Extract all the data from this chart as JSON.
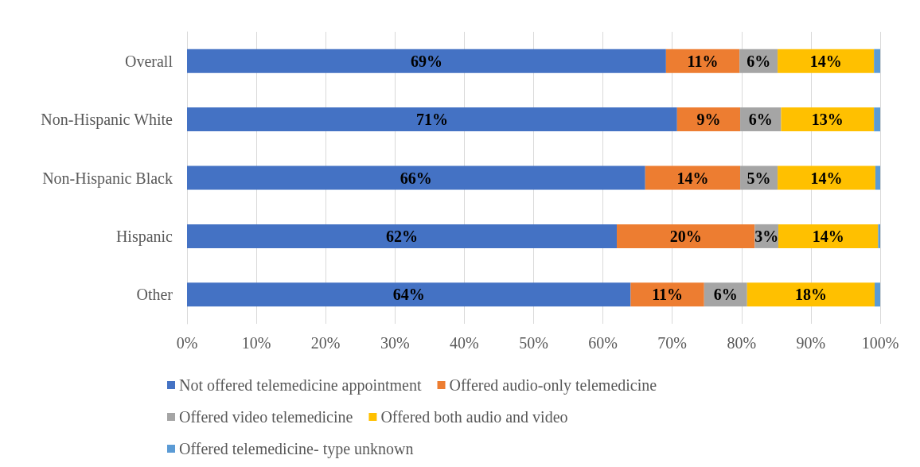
{
  "chart_data": {
    "type": "bar",
    "orientation": "horizontal",
    "stacked": true,
    "categories": [
      "Overall",
      "Non-Hispanic White",
      "Non-Hispanic Black",
      "Hispanic",
      "Other"
    ],
    "series": [
      {
        "name": "Not offered telemedicine appointment",
        "color": "#4472c4",
        "values": [
          69.1,
          70.7,
          66.1,
          62.0,
          64.0
        ],
        "value_labels": [
          "69%",
          "71%",
          "66%",
          "62%",
          "64%"
        ]
      },
      {
        "name": "Offered audio-only telemedicine",
        "color": "#ed7d31",
        "values": [
          10.6,
          9.1,
          13.7,
          19.9,
          10.6
        ],
        "value_labels": [
          "11%",
          "9%",
          "14%",
          "20%",
          "11%"
        ]
      },
      {
        "name": "Offered video telemedicine",
        "color": "#a5a5a5",
        "values": [
          5.5,
          5.9,
          5.4,
          3.4,
          6.2
        ],
        "value_labels": [
          "6%",
          "6%",
          "5%",
          "3%",
          "6%"
        ]
      },
      {
        "name": "Offered both audio and video",
        "color": "#ffc000",
        "values": [
          13.9,
          13.4,
          14.1,
          14.4,
          18.4
        ],
        "value_labels": [
          "14%",
          "13%",
          "14%",
          "14%",
          "18%"
        ]
      },
      {
        "name": "Offered telemedicine- type unknown",
        "color": "#5b9bd5",
        "values": [
          0.9,
          0.9,
          0.7,
          0.3,
          0.8
        ],
        "value_labels": [
          null,
          null,
          null,
          null,
          null
        ]
      }
    ],
    "xlim": [
      0,
      100
    ],
    "xticks": [
      {
        "value": 0,
        "label": "0%"
      },
      {
        "value": 10,
        "label": "10%"
      },
      {
        "value": 20,
        "label": "20%"
      },
      {
        "value": 30,
        "label": "30%"
      },
      {
        "value": 40,
        "label": "40%"
      },
      {
        "value": 50,
        "label": "50%"
      },
      {
        "value": 60,
        "label": "60%"
      },
      {
        "value": 70,
        "label": "70%"
      },
      {
        "value": 80,
        "label": "80%"
      },
      {
        "value": 90,
        "label": "90%"
      },
      {
        "value": 100,
        "label": "100%"
      }
    ],
    "grid": "x",
    "legend": "bottom"
  }
}
